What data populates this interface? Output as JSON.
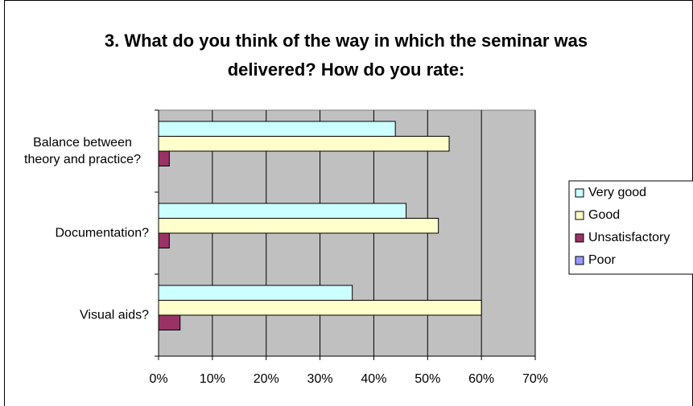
{
  "chart_data": {
    "type": "hbar",
    "title": "3. What do you think of the way in which the seminar was delivered? How do you rate:",
    "categories": [
      "Balance between theory and practice?",
      "Documentation?",
      "Visual aids?"
    ],
    "series": [
      {
        "name": "Very good",
        "color": "#ccffff",
        "values": [
          44,
          46,
          36
        ]
      },
      {
        "name": "Good",
        "color": "#ffffcc",
        "values": [
          54,
          52,
          60
        ]
      },
      {
        "name": "Unsatisfactory",
        "color": "#993366",
        "values": [
          2,
          2,
          4
        ]
      },
      {
        "name": "Poor",
        "color": "#9999ff",
        "values": [
          0,
          0,
          0
        ]
      }
    ],
    "xlim": [
      0,
      70
    ],
    "xticks": [
      {
        "value": 0,
        "label": "0%"
      },
      {
        "value": 10,
        "label": "10%"
      },
      {
        "value": 20,
        "label": "20%"
      },
      {
        "value": 30,
        "label": "30%"
      },
      {
        "value": 40,
        "label": "40%"
      },
      {
        "value": 50,
        "label": "50%"
      },
      {
        "value": 60,
        "label": "60%"
      },
      {
        "value": 70,
        "label": "70%"
      }
    ],
    "grid": true,
    "plot_background": "#c0c0c0",
    "legend": "right"
  }
}
